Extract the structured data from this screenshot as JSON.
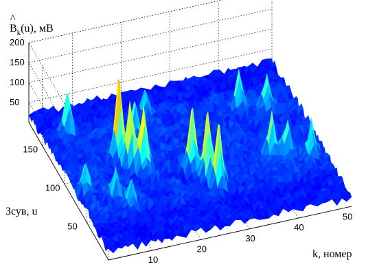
{
  "chart_data": {
    "type": "surface",
    "title": "",
    "zlabel": "B̂k(u), мВ",
    "zlabel_parts": {
      "hat": "^",
      "base": "B",
      "sub": "k",
      "rest": "(u), мВ"
    },
    "xlabel": "k, номер",
    "ylabel": "Зсув, u",
    "x_ticks": [
      "10",
      "20",
      "30",
      "40",
      "50"
    ],
    "y_ticks": [
      "50",
      "100",
      "150"
    ],
    "z_ticks": [
      "50",
      "100",
      "150",
      "200"
    ],
    "xlim": [
      1,
      51
    ],
    "ylim": [
      1,
      180
    ],
    "zlim": [
      0,
      200
    ],
    "grid": true,
    "colormap": "jet",
    "colors": {
      "low": "#00008f",
      "mid": "#00ffff",
      "high": "#800000"
    },
    "peaks": [
      {
        "k": 13,
        "u": 108,
        "B": 205
      },
      {
        "k": 14,
        "u": 94,
        "B": 165
      },
      {
        "k": 16,
        "u": 86,
        "B": 150
      },
      {
        "k": 25,
        "u": 75,
        "B": 148
      },
      {
        "k": 27,
        "u": 62,
        "B": 158
      },
      {
        "k": 28,
        "u": 48,
        "B": 152
      },
      {
        "k": 6,
        "u": 148,
        "B": 95
      },
      {
        "k": 18,
        "u": 128,
        "B": 80
      },
      {
        "k": 22,
        "u": 148,
        "B": 60
      },
      {
        "k": 40,
        "u": 132,
        "B": 85
      },
      {
        "k": 45,
        "u": 125,
        "B": 75
      },
      {
        "k": 41,
        "u": 70,
        "B": 92
      },
      {
        "k": 44,
        "u": 68,
        "B": 82
      },
      {
        "k": 48,
        "u": 58,
        "B": 80
      },
      {
        "k": 8,
        "u": 62,
        "B": 62
      },
      {
        "k": 10,
        "u": 48,
        "B": 55
      },
      {
        "k": 3,
        "u": 75,
        "B": 65
      }
    ]
  }
}
